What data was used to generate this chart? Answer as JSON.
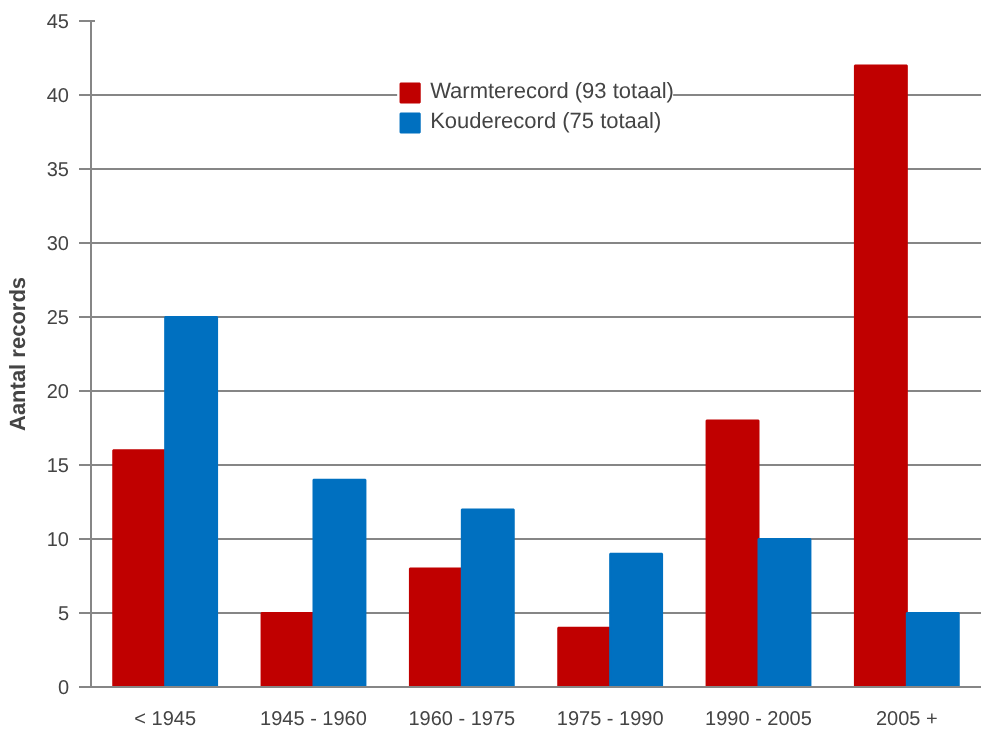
{
  "chart_data": {
    "type": "bar",
    "ylabel": "Aantal records",
    "categories": [
      "< 1945",
      "1945 - 1960",
      "1960 - 1975",
      "1975 - 1990",
      "1990 - 2005",
      "2005 +"
    ],
    "series": [
      {
        "name": "Warmterecord (93 totaal)",
        "color": "#c00000",
        "values": [
          16,
          5,
          8,
          4,
          18,
          42
        ]
      },
      {
        "name": "Kouderecord (75 totaal)",
        "color": "#0070c0",
        "values": [
          25,
          14,
          12,
          9,
          10,
          5
        ]
      }
    ],
    "ylim": [
      0,
      45
    ],
    "yticks": [
      0,
      5,
      10,
      15,
      20,
      25,
      30,
      35,
      40,
      45
    ],
    "grid": "y",
    "legend": "top"
  }
}
